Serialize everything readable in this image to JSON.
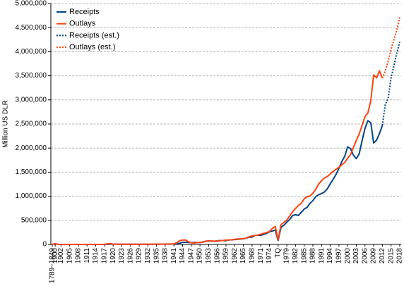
{
  "chart_data": {
    "type": "line",
    "ylabel": "Million US DLR",
    "categories": [
      "1789–1849",
      "1900",
      null,
      "1902",
      null,
      null,
      "1905",
      null,
      null,
      "1908",
      null,
      null,
      "1911",
      null,
      null,
      "1914",
      null,
      null,
      "1917",
      null,
      null,
      "1920",
      null,
      null,
      "1923",
      null,
      null,
      "1926",
      null,
      null,
      "1929",
      null,
      null,
      "1932",
      null,
      null,
      "1935",
      null,
      null,
      "1938",
      null,
      null,
      "1941",
      null,
      null,
      "1944",
      null,
      null,
      "1947",
      null,
      null,
      "1950",
      null,
      null,
      "1953",
      null,
      null,
      "1956",
      null,
      null,
      "1959",
      null,
      null,
      "1962",
      null,
      null,
      "1965",
      null,
      null,
      "1968",
      null,
      null,
      "1971",
      null,
      null,
      "1974",
      null,
      null,
      "TQ",
      null,
      null,
      "1979",
      null,
      null,
      "1982",
      null,
      null,
      "1985",
      null,
      null,
      "1988",
      null,
      null,
      "1991",
      null,
      null,
      "1994",
      null,
      null,
      "1997",
      null,
      null,
      "2000",
      null,
      null,
      "2003",
      null,
      null,
      "2006",
      null,
      null,
      "2009",
      null,
      null,
      "2012",
      null,
      null,
      "2015",
      null,
      null,
      "2018"
    ],
    "series": [
      {
        "name": "Receipts",
        "color": "#004586",
        "linestyle": "solid",
        "values": [
          1160,
          14462,
          588,
          562,
          562,
          541,
          544,
          595,
          666,
          602,
          604,
          676,
          702,
          693,
          714,
          725,
          683,
          761,
          1101,
          3645,
          5130,
          6649,
          5571,
          4026,
          3853,
          3871,
          3641,
          3795,
          4013,
          3900,
          3862,
          4058,
          3116,
          1924,
          1997,
          2955,
          3609,
          3923,
          5387,
          6751,
          6295,
          6548,
          8712,
          14634,
          24001,
          43747,
          45159,
          39296,
          38514,
          41560,
          39415,
          39443,
          51616,
          66167,
          69608,
          69701,
          65451,
          74587,
          79990,
          79636,
          79249,
          92492,
          94388,
          99676,
          106560,
          112613,
          116817,
          130835,
          148822,
          152973,
          186882,
          192807,
          187139,
          207309,
          230799,
          263224,
          279090,
          298060,
          81232,
          355559,
          399561,
          463302,
          517112,
          599272,
          617766,
          600562,
          666438,
          734037,
          769155,
          854288,
          909238,
          991105,
          1031958,
          1054988,
          1091208,
          1154334,
          1258566,
          1351790,
          1453053,
          1579232,
          1721728,
          1827452,
          2025191,
          1991082,
          1853136,
          1782314,
          1880114,
          2153611,
          2406869,
          2567985,
          2523991,
          2104989,
          2162706,
          2303466,
          2468599,
          null,
          null,
          null,
          null,
          null,
          null
        ]
      },
      {
        "name": "Outlays",
        "color": "#ff420e",
        "linestyle": "solid",
        "values": [
          1090,
          15453,
          525,
          485,
          517,
          584,
          567,
          570,
          579,
          659,
          694,
          694,
          691,
          690,
          715,
          726,
          746,
          713,
          1954,
          12677,
          18493,
          6358,
          5062,
          3289,
          3140,
          2908,
          2924,
          2930,
          2857,
          2961,
          3127,
          3320,
          3577,
          4659,
          4598,
          6541,
          6412,
          8228,
          7580,
          6840,
          9141,
          9468,
          13653,
          35137,
          78555,
          91304,
          92712,
          55232,
          34496,
          29764,
          38835,
          42562,
          45514,
          67686,
          76101,
          70855,
          68444,
          70640,
          76578,
          82405,
          92098,
          92191,
          97723,
          106821,
          111316,
          118528,
          118228,
          134532,
          157464,
          178134,
          183640,
          195649,
          210172,
          230681,
          245707,
          269359,
          332332,
          371792,
          95975,
          409218,
          458746,
          504028,
          590941,
          678241,
          745743,
          808364,
          851805,
          946344,
          990382,
          1004017,
          1064416,
          1143743,
          1252993,
          1324226,
          1381529,
          1409386,
          1461752,
          1515742,
          1560484,
          1601116,
          1652458,
          1701842,
          1788950,
          1862846,
          2010894,
          2159899,
          2292841,
          2471957,
          2655050,
          2728686,
          2982544,
          3517677,
          3456213,
          3603061,
          3450000,
          null,
          null,
          null,
          null,
          null,
          null
        ]
      },
      {
        "name": "Receipts (est.)",
        "color": "#004586",
        "linestyle": "dotted",
        "values": [
          null,
          null,
          null,
          null,
          null,
          null,
          null,
          null,
          null,
          null,
          null,
          null,
          null,
          null,
          null,
          null,
          null,
          null,
          null,
          null,
          null,
          null,
          null,
          null,
          null,
          null,
          null,
          null,
          null,
          null,
          null,
          null,
          null,
          null,
          null,
          null,
          null,
          null,
          null,
          null,
          null,
          null,
          null,
          null,
          null,
          null,
          null,
          null,
          null,
          null,
          null,
          null,
          null,
          null,
          null,
          null,
          null,
          null,
          null,
          null,
          null,
          null,
          null,
          null,
          null,
          null,
          null,
          null,
          null,
          null,
          null,
          null,
          null,
          null,
          null,
          null,
          null,
          null,
          null,
          null,
          null,
          null,
          null,
          null,
          null,
          null,
          null,
          null,
          null,
          null,
          null,
          null,
          null,
          null,
          null,
          null,
          null,
          null,
          null,
          null,
          null,
          null,
          null,
          null,
          null,
          null,
          null,
          null,
          null,
          null,
          null,
          null,
          null,
          null,
          2468599,
          2902000,
          3033000,
          3455000,
          3706000,
          3975000,
          4202000
        ]
      },
      {
        "name": "Outlays  (est.)",
        "color": "#ff420e",
        "linestyle": "dotted",
        "values": [
          null,
          null,
          null,
          null,
          null,
          null,
          null,
          null,
          null,
          null,
          null,
          null,
          null,
          null,
          null,
          null,
          null,
          null,
          null,
          null,
          null,
          null,
          null,
          null,
          null,
          null,
          null,
          null,
          null,
          null,
          null,
          null,
          null,
          null,
          null,
          null,
          null,
          null,
          null,
          null,
          null,
          null,
          null,
          null,
          null,
          null,
          null,
          null,
          null,
          null,
          null,
          null,
          null,
          null,
          null,
          null,
          null,
          null,
          null,
          null,
          null,
          null,
          null,
          null,
          null,
          null,
          null,
          null,
          null,
          null,
          null,
          null,
          null,
          null,
          null,
          null,
          null,
          null,
          null,
          null,
          null,
          null,
          null,
          null,
          null,
          null,
          null,
          null,
          null,
          null,
          null,
          null,
          null,
          null,
          null,
          null,
          null,
          null,
          null,
          null,
          null,
          null,
          null,
          null,
          null,
          null,
          null,
          null,
          null,
          null,
          null,
          null,
          null,
          null,
          3450000,
          3600000,
          3800000,
          4050000,
          4250000,
          4450000,
          4720000
        ]
      }
    ],
    "ylim": [
      0,
      5000000
    ],
    "yticks": [
      0,
      {
        "value": 500000,
        "label": "500,000"
      },
      {
        "value": 1000000,
        "label": "1,000,000"
      },
      {
        "value": 1500000,
        "label": "1,500,000"
      },
      {
        "value": 2000000,
        "label": "2,000,000"
      },
      {
        "value": 2500000,
        "label": "2,500,000"
      },
      {
        "value": 3000000,
        "label": "3,000,000"
      },
      {
        "value": 3500000,
        "label": "3,500,000"
      },
      {
        "value": 4000000,
        "label": "4,000,000"
      },
      {
        "value": 4500000,
        "label": "4,500,000"
      },
      {
        "value": 5000000,
        "label": "5,000,000"
      }
    ],
    "grid": true,
    "legend": "top-left"
  }
}
